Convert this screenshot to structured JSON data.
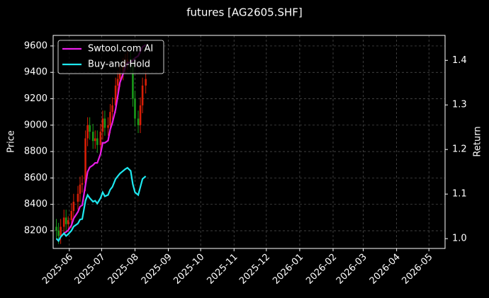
{
  "chart_data": {
    "type": "candlestick",
    "title": "futures [AG2605.SHF]",
    "ylabel": "Price",
    "y2label": "Return",
    "x": [
      -12,
      -10,
      -8,
      -5,
      -3,
      -1,
      2,
      4,
      8,
      10,
      12,
      15,
      17,
      19,
      22,
      24,
      26,
      29,
      31,
      33,
      36,
      38,
      40,
      43,
      45,
      47,
      50,
      52,
      54,
      57,
      59,
      61,
      64,
      66,
      68,
      71
    ],
    "open": [
      8230,
      8200,
      8160,
      8230,
      8300,
      8250,
      8280,
      8350,
      8420,
      8480,
      8550,
      8560,
      8900,
      9000,
      8950,
      8880,
      8900,
      8850,
      8950,
      9050,
      8980,
      9000,
      9100,
      9150,
      9300,
      9350,
      9400,
      9450,
      9480,
      9500,
      9450,
      9200,
      9050,
      9000,
      9150,
      9300
    ],
    "high": [
      8290,
      8260,
      8290,
      8360,
      8360,
      8310,
      8410,
      8480,
      8540,
      8610,
      8620,
      8960,
      9060,
      9060,
      9010,
      8960,
      8960,
      9010,
      9110,
      9110,
      9060,
      9160,
      9210,
      9360,
      9410,
      9460,
      9510,
      9540,
      9560,
      9560,
      9510,
      9260,
      9110,
      9210,
      9360,
      9410
    ],
    "low": [
      8140,
      8100,
      8100,
      8170,
      8190,
      8190,
      8220,
      8290,
      8360,
      8420,
      8490,
      8500,
      8840,
      8890,
      8820,
      8820,
      8790,
      8790,
      8890,
      8920,
      8920,
      8940,
      9040,
      9090,
      9240,
      9290,
      9340,
      9390,
      9420,
      9390,
      9140,
      8990,
      8940,
      8940,
      9090,
      9240
    ],
    "close": [
      8200,
      8160,
      8230,
      8300,
      8250,
      8280,
      8350,
      8420,
      8480,
      8550,
      8560,
      8900,
      9000,
      8950,
      8880,
      8900,
      8850,
      8950,
      9050,
      8980,
      9000,
      9100,
      9150,
      9300,
      9350,
      9400,
      9450,
      9480,
      9500,
      9450,
      9200,
      9050,
      9000,
      9150,
      9300,
      9350
    ],
    "up_color": "#d81e06",
    "down_color": "#1a9a1a",
    "series": [
      {
        "name": "Swtool.com AI",
        "color": "#e81ee8",
        "axis": "y2",
        "values": [
          1.0,
          0.995,
          1.004,
          1.012,
          1.015,
          1.019,
          1.03,
          1.045,
          1.06,
          1.072,
          1.075,
          1.12,
          1.15,
          1.16,
          1.165,
          1.17,
          1.17,
          1.19,
          1.215,
          1.215,
          1.22,
          1.245,
          1.26,
          1.29,
          1.32,
          1.35,
          1.37,
          1.385,
          1.395,
          1.395,
          1.4,
          1.405,
          1.41,
          1.42,
          1.43,
          1.435
        ]
      },
      {
        "name": "Buy-and-Hold",
        "color": "#1ee8f0",
        "axis": "y2",
        "values": [
          1.0,
          0.995,
          1.004,
          1.012,
          1.006,
          1.01,
          1.018,
          1.027,
          1.034,
          1.043,
          1.044,
          1.085,
          1.098,
          1.091,
          1.083,
          1.085,
          1.079,
          1.091,
          1.104,
          1.095,
          1.098,
          1.11,
          1.116,
          1.134,
          1.14,
          1.146,
          1.152,
          1.156,
          1.159,
          1.152,
          1.122,
          1.104,
          1.098,
          1.116,
          1.134,
          1.14
        ]
      }
    ],
    "xlim": [
      -15,
      349
    ],
    "xticks": [
      {
        "value": 0,
        "label": "2025-06"
      },
      {
        "value": 30,
        "label": "2025-07"
      },
      {
        "value": 61,
        "label": "2025-08"
      },
      {
        "value": 92,
        "label": "2025-09"
      },
      {
        "value": 122,
        "label": "2025-10"
      },
      {
        "value": 153,
        "label": "2025-11"
      },
      {
        "value": 183,
        "label": "2025-12"
      },
      {
        "value": 214,
        "label": "2026-01"
      },
      {
        "value": 245,
        "label": "2026-02"
      },
      {
        "value": 273,
        "label": "2026-03"
      },
      {
        "value": 304,
        "label": "2026-04"
      },
      {
        "value": 334,
        "label": "2026-05"
      }
    ],
    "ylim": [
      8066,
      9680
    ],
    "yticks": [
      8200,
      8400,
      8600,
      8800,
      9000,
      9200,
      9400,
      9600
    ],
    "y2lim": [
      0.978,
      1.456
    ],
    "y2ticks": [
      {
        "value": 1,
        "label": "1.0"
      },
      1.1,
      1.2,
      1.3,
      1.4
    ],
    "grid": true,
    "legend": "upper left"
  }
}
